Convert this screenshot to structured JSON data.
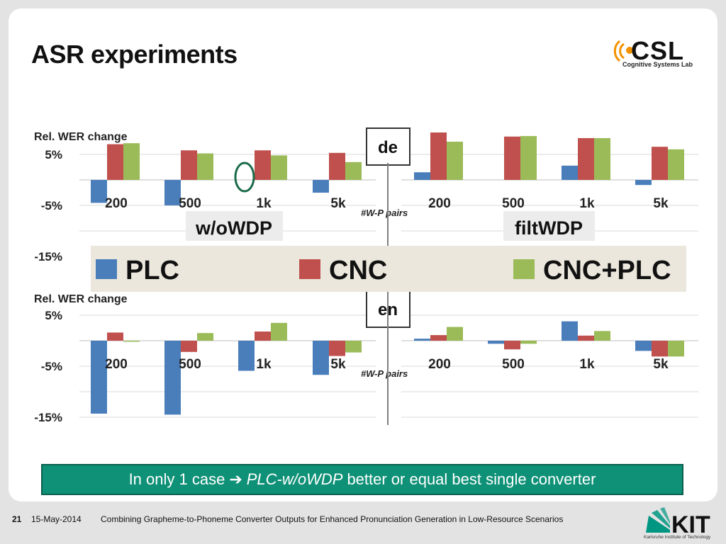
{
  "slide": {
    "title": "ASR experiments",
    "logo_text": "CSL",
    "logo_subtitle": "Cognitive Systems Lab"
  },
  "chart_data": {
    "type": "bar",
    "categories": [
      "200",
      "500",
      "1k",
      "5k"
    ],
    "series_names": [
      "PLC",
      "CNC",
      "CNC+PLC"
    ],
    "colors": {
      "PLC": "#4a7ebb",
      "CNC": "#c0504d",
      "CNC+PLC": "#9bbb59"
    },
    "legend": [
      "PLC",
      "CNC",
      "CNC+PLC"
    ],
    "ylabel": "Rel. WER change",
    "xlabel_mid": "#W-P pairs",
    "yticks": [
      "5%",
      "-5%",
      "-15%"
    ],
    "ylim": [
      -15,
      5
    ],
    "panels": [
      {
        "name": "de",
        "label": "de",
        "groups": [
          {
            "label": "w/oWDP",
            "series": [
              {
                "name": "PLC",
                "values": [
                  -4.5,
                  -5.0,
                  0.0,
                  -2.5
                ]
              },
              {
                "name": "CNC",
                "values": [
                  7.0,
                  5.8,
                  5.8,
                  5.3
                ]
              },
              {
                "name": "CNC+PLC",
                "values": [
                  7.2,
                  5.2,
                  4.8,
                  3.5
                ]
              }
            ]
          },
          {
            "label": "filtWDP",
            "series": [
              {
                "name": "PLC",
                "values": [
                  1.5,
                  0.0,
                  2.8,
                  -1.0
                ]
              },
              {
                "name": "CNC",
                "values": [
                  9.3,
                  8.5,
                  8.2,
                  6.5
                ]
              },
              {
                "name": "CNC+PLC",
                "values": [
                  7.5,
                  8.6,
                  8.2,
                  6.0
                ]
              }
            ]
          }
        ]
      },
      {
        "name": "en",
        "label": "en",
        "groups": [
          {
            "label": "w/oWDP",
            "series": [
              {
                "name": "PLC",
                "values": [
                  -14.3,
                  -14.5,
                  -5.9,
                  -6.7
                ]
              },
              {
                "name": "CNC",
                "values": [
                  1.6,
                  -2.2,
                  1.8,
                  -3.0
                ]
              },
              {
                "name": "CNC+PLC",
                "values": [
                  -0.2,
                  1.5,
                  3.5,
                  -2.3
                ]
              }
            ]
          },
          {
            "label": "filtWDP",
            "series": [
              {
                "name": "PLC",
                "values": [
                  0.4,
                  -0.6,
                  3.8,
                  -2.0
                ]
              },
              {
                "name": "CNC",
                "values": [
                  1.1,
                  -1.7,
                  1.0,
                  -3.1
                ]
              },
              {
                "name": "CNC+PLC",
                "values": [
                  2.7,
                  -0.6,
                  1.9,
                  -3.1
                ]
              }
            ]
          }
        ]
      }
    ]
  },
  "callout": {
    "text_before": "In only 1 case",
    "arrow": "➔",
    "text_emphasis": "PLC-w/oWDP",
    "text_after": "better or equal best single converter"
  },
  "footer": {
    "page": "21",
    "date": "15-May-2014",
    "text": "Combining Grapheme-to-Phoneme Converter Outputs for Enhanced Pronunciation Generation in Low-Resource Scenarios",
    "logo_text": "KIT",
    "logo_subtitle": "Karlsruhe Institute of Technology"
  }
}
